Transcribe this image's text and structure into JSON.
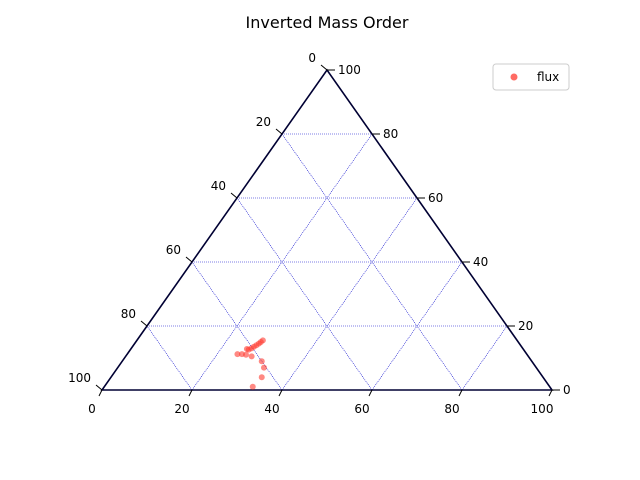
{
  "chart_data": {
    "type": "scatter",
    "subtype": "ternary",
    "title": "Inverted Mass Order",
    "axes": {
      "bottom": {
        "ticks": [
          "0",
          "20",
          "40",
          "60",
          "80",
          "100"
        ]
      },
      "left": {
        "ticks": [
          "100",
          "80",
          "60",
          "40",
          "20",
          "0"
        ]
      },
      "right": {
        "ticks": [
          "0",
          "20",
          "40",
          "60",
          "80",
          "100"
        ]
      }
    },
    "grid": true,
    "grid_color": "#0000cc",
    "legend": {
      "position": "top-right",
      "entries": [
        "flux"
      ]
    },
    "series": [
      {
        "name": "flux",
        "color": "#ff3b30",
        "points": [
          {
            "bottom": 28.0,
            "right": 15.5
          },
          {
            "bottom": 27.8,
            "right": 15.0
          },
          {
            "bottom": 27.6,
            "right": 14.5
          },
          {
            "bottom": 27.3,
            "right": 14.0
          },
          {
            "bottom": 27.0,
            "right": 13.5
          },
          {
            "bottom": 26.7,
            "right": 13.0
          },
          {
            "bottom": 26.3,
            "right": 12.6
          },
          {
            "bottom": 25.8,
            "right": 12.8
          },
          {
            "bottom": 24.5,
            "right": 11.2
          },
          {
            "bottom": 25.5,
            "right": 11.2
          },
          {
            "bottom": 26.5,
            "right": 11.0
          },
          {
            "bottom": 28.0,
            "right": 10.5
          },
          {
            "bottom": 31.0,
            "right": 9.0
          },
          {
            "bottom": 32.5,
            "right": 7.0
          },
          {
            "bottom": 33.5,
            "right": 4.0
          },
          {
            "bottom": 33.0,
            "right": 1.0
          }
        ]
      }
    ]
  }
}
